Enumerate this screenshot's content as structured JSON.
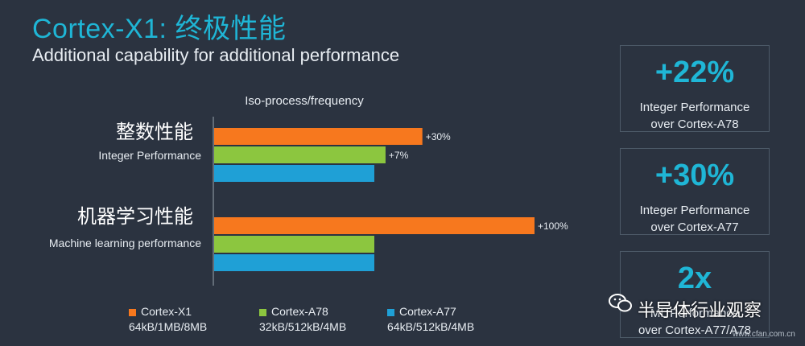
{
  "title": "Cortex-X1: 终极性能",
  "subtitle": "Additional capability for additional performance",
  "chart_data": {
    "type": "bar",
    "orientation": "horizontal",
    "header": "Iso-process/frequency",
    "groups": [
      {
        "label_cn": "整数性能",
        "label_en": "Integer Performance"
      },
      {
        "label_cn": "机器学习性能",
        "label_en": "Machine learning performance"
      }
    ],
    "series": [
      {
        "name": "Cortex-X1",
        "spec": "64kB/1MB/8MB",
        "color": "#f7781e",
        "values": [
          1.3,
          2.0
        ],
        "labels": [
          "+30%",
          "+100%"
        ]
      },
      {
        "name": "Cortex-A78",
        "spec": "32kB/512kB/4MB",
        "color": "#8cc63f",
        "values": [
          1.07,
          1.0
        ],
        "labels": [
          "+7%",
          ""
        ]
      },
      {
        "name": "Cortex-A77",
        "spec": "64kB/512kB/4MB",
        "color": "#1fa0d6",
        "values": [
          1.0,
          1.0
        ],
        "labels": [
          "",
          ""
        ]
      }
    ],
    "xlim": [
      0,
      2.0
    ],
    "legend": "bottom"
  },
  "stats": [
    {
      "big": "+22%",
      "line1": "Integer Performance",
      "line2": "over Cortex-A78"
    },
    {
      "big": "+30%",
      "line1": "Integer Performance",
      "line2": "over Cortex-A77"
    },
    {
      "big": "2x",
      "line1": "ML Performance",
      "line2": "over Cortex-A77/A78"
    }
  ],
  "watermark": "半导体行业观察",
  "source": "www.cfan.com.cn",
  "colors": {
    "accent": "#1fb6d6",
    "background": "#2b3340"
  }
}
